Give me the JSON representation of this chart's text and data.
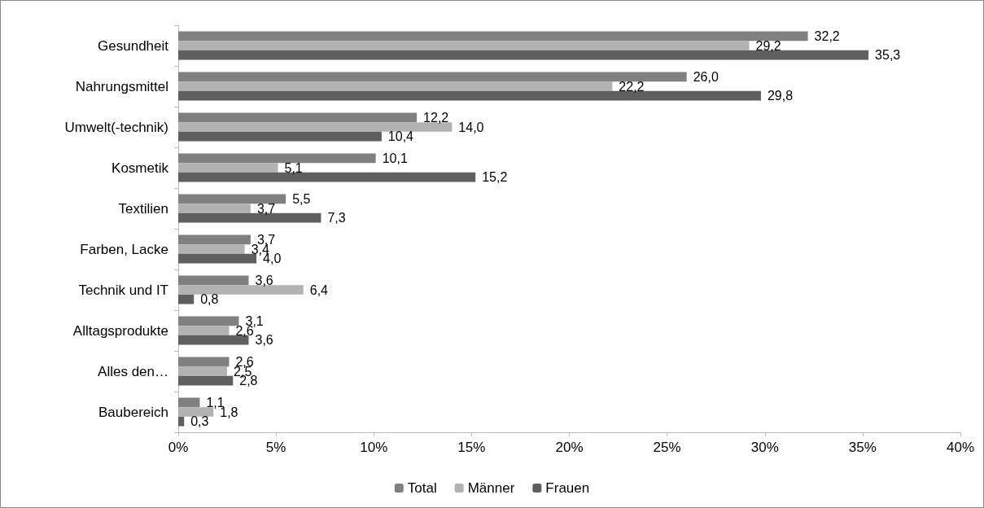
{
  "chart_data": {
    "type": "bar",
    "orientation": "horizontal",
    "categories": [
      "Gesundheit",
      "Nahrungsmittel",
      "Umwelt(-technik)",
      "Kosmetik",
      "Textilien",
      "Farben, Lacke",
      "Technik und IT",
      "Alltagsprodukte",
      "Alles den…",
      "Baubereich"
    ],
    "series": [
      {
        "name": "Total",
        "color": "#808080",
        "values": [
          32.2,
          26.0,
          12.2,
          10.1,
          5.5,
          3.7,
          3.6,
          3.1,
          2.6,
          1.1
        ],
        "value_labels": [
          "32,2",
          "26,0",
          "12,2",
          "10,1",
          "5,5",
          "3,7",
          "3,6",
          "3,1",
          "2,6",
          "1,1"
        ]
      },
      {
        "name": "Männer",
        "color": "#b2b2b2",
        "values": [
          29.2,
          22.2,
          14.0,
          5.1,
          3.7,
          3.4,
          6.4,
          2.6,
          2.5,
          1.8
        ],
        "value_labels": [
          "29,2",
          "22,2",
          "14,0",
          "5,1",
          "3,7",
          "3,4",
          "6,4",
          "2,6",
          "2,5",
          "1,8"
        ]
      },
      {
        "name": "Frauen",
        "color": "#5f5f5f",
        "values": [
          35.3,
          29.8,
          10.4,
          15.2,
          7.3,
          4.0,
          0.8,
          3.6,
          2.8,
          0.3
        ],
        "value_labels": [
          "35,3",
          "29,8",
          "10,4",
          "15,2",
          "7,3",
          "4,0",
          "0,8",
          "3,6",
          "2,8",
          "0,3"
        ]
      }
    ],
    "xlim": [
      0,
      40
    ],
    "xticks": [
      {
        "value": 0,
        "label": "0%"
      },
      {
        "value": 5,
        "label": "5%"
      },
      {
        "value": 10,
        "label": "10%"
      },
      {
        "value": 15,
        "label": "15%"
      },
      {
        "value": 20,
        "label": "20%"
      },
      {
        "value": 25,
        "label": "25%"
      },
      {
        "value": 30,
        "label": "30%"
      },
      {
        "value": 35,
        "label": "35%"
      },
      {
        "value": 40,
        "label": "40%"
      }
    ],
    "grid": false,
    "legend": "bottom"
  }
}
